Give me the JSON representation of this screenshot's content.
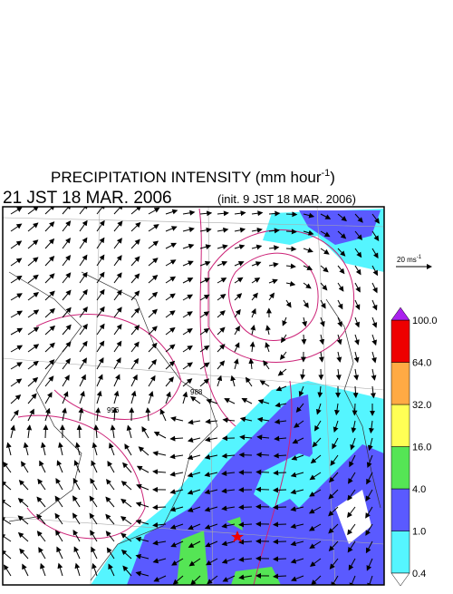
{
  "header": {
    "title": "PRECIPITATION INTENSITY (mm hour",
    "title_exponent": "-1",
    "title_close": ")",
    "valid_time": "21 JST 18 MAR. 2006",
    "init_time": "(init. 9 JST 18 MAR. 2006)"
  },
  "wind_reference": {
    "label": "20 ms",
    "exponent": "-1"
  },
  "colorbar": {
    "labels": [
      "0.4",
      "1.0",
      "4.0",
      "16.0",
      "32.0",
      "64.0",
      "100.0"
    ],
    "colors": [
      "#55f5ff",
      "#5a5aff",
      "#55e555",
      "#ffff55",
      "#ffaa44",
      "#ee0000"
    ],
    "over_color": "#aa22ee",
    "under_color": "#ffffff"
  },
  "map": {
    "contour_labels": [
      "996",
      "988"
    ]
  }
}
